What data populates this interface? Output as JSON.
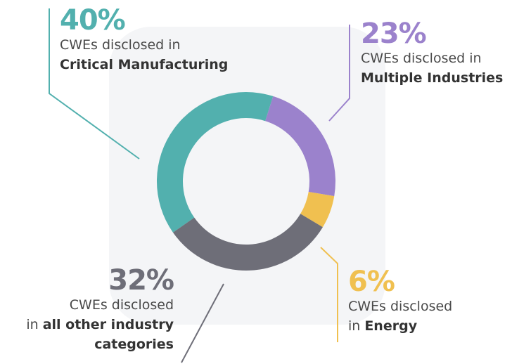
{
  "chart_data": {
    "type": "donut",
    "categories": [
      "Critical Manufacturing",
      "Multiple Industries",
      "Energy",
      "all other industry categories"
    ],
    "values": [
      40,
      23,
      6,
      32
    ],
    "value_labels": [
      "40%",
      "23%",
      "6%",
      "32%"
    ],
    "colors": [
      "#52b0ae",
      "#9b82cc",
      "#f0c050",
      "#6e6e78"
    ],
    "labels": [
      {
        "lead": "CWEs disclosed in"
      },
      {
        "lead": "CWEs disclosed in"
      },
      {
        "lead": "CWEs disclosed",
        "joiner": "in"
      },
      {
        "lead": "CWEs disclosed",
        "joiner": "in"
      }
    ]
  }
}
